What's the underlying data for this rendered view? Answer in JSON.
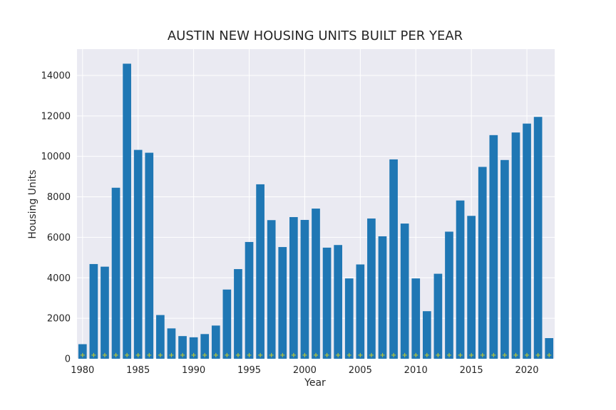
{
  "chart_data": {
    "type": "bar",
    "title": "AUSTIN NEW HOUSING UNITS BUILT PER YEAR",
    "xlabel": "Year",
    "ylabel": "Housing Units",
    "x": [
      1980,
      1981,
      1982,
      1983,
      1984,
      1985,
      1986,
      1987,
      1988,
      1989,
      1990,
      1991,
      1992,
      1993,
      1994,
      1995,
      1996,
      1997,
      1998,
      1999,
      2000,
      2001,
      2002,
      2003,
      2004,
      2005,
      2006,
      2007,
      2008,
      2009,
      2010,
      2011,
      2012,
      2013,
      2014,
      2015,
      2016,
      2017,
      2018,
      2019,
      2020,
      2021,
      2022
    ],
    "values": [
      720,
      4680,
      4550,
      8450,
      14580,
      10320,
      10180,
      2160,
      1500,
      1120,
      1060,
      1220,
      1640,
      3420,
      4430,
      5770,
      8620,
      6850,
      5520,
      7000,
      6860,
      7420,
      5490,
      5620,
      3970,
      4660,
      6930,
      6050,
      9850,
      6680,
      3970,
      2350,
      4200,
      6280,
      7820,
      7060,
      9480,
      11050,
      9820,
      11180,
      11620,
      11950,
      1020
    ],
    "marker_series": {
      "symbol": "+",
      "value": 180,
      "color": "#b5c43a"
    },
    "bar_color": "#1f77b4",
    "ylim": [
      0,
      15300
    ],
    "xlim": [
      1979.5,
      2022.5
    ],
    "yticks": [
      0,
      2000,
      4000,
      6000,
      8000,
      10000,
      12000,
      14000
    ],
    "xticks": [
      1980,
      1985,
      1990,
      1995,
      2000,
      2005,
      2010,
      2015,
      2020
    ],
    "grid": true,
    "background": "#eaeaf2"
  }
}
